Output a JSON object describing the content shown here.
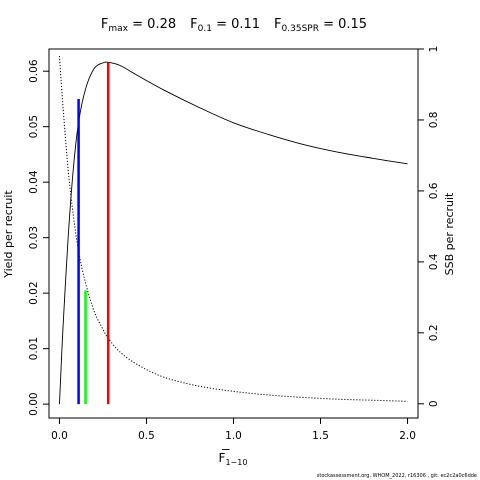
{
  "title": {
    "fmax": {
      "symbol": "F",
      "sub": "max",
      "value": " = 0.28"
    },
    "f01": {
      "symbol": "F",
      "sub": "0.1",
      "value": " = 0.11"
    },
    "fspr": {
      "symbol": "F",
      "sub": "0.35SPR",
      "value": " = 0.15"
    }
  },
  "xlabel": {
    "text": "F",
    "sub": "1−10"
  },
  "footer": "stockassessment.org, WHOM_2022, r16306 , git: ec2c2a0c6dde",
  "chart_data": {
    "type": "line",
    "title": "Fmax = 0.28   F0.1 = 0.11   F0.35SPR = 0.15",
    "xlabel": "F 1-10",
    "ylabel": "Yield per recruit",
    "y2label": "SSB per recruit",
    "xlim": [
      -0.06,
      2.06
    ],
    "ylim": [
      -0.0025,
      0.064
    ],
    "y2lim": [
      -0.04,
      1.0
    ],
    "xticks": [
      0,
      0.5,
      1,
      1.5,
      2
    ],
    "xtick_labels": [
      "0.0",
      "0.5",
      "1.0",
      "1.5",
      "2.0"
    ],
    "yticks": [
      0,
      0.01,
      0.02,
      0.03,
      0.04,
      0.05,
      0.06
    ],
    "ytick_labels": [
      "0.00",
      "0.01",
      "0.02",
      "0.03",
      "0.04",
      "0.05",
      "0.06"
    ],
    "y2ticks": [
      0,
      0.2,
      0.4,
      0.6,
      0.8,
      1.0
    ],
    "y2tick_labels": [
      "0",
      "0.2",
      "0.4",
      "0.6",
      "0.8",
      "1"
    ],
    "grid": false,
    "series": [
      {
        "style": "solid",
        "axis": "left",
        "color": "#000000",
        "x": [
          0,
          0.02,
          0.05,
          0.08,
          0.11,
          0.15,
          0.2,
          0.25,
          0.28,
          0.35,
          0.45,
          0.6,
          0.8,
          1.0,
          1.2,
          1.4,
          1.6,
          1.8,
          2.0
        ],
        "y": [
          0,
          0.0135,
          0.03,
          0.0425,
          0.0508,
          0.0568,
          0.0605,
          0.0615,
          0.0616,
          0.061,
          0.0592,
          0.0566,
          0.0535,
          0.0507,
          0.0486,
          0.0468,
          0.0454,
          0.0443,
          0.0433
        ]
      },
      {
        "style": "dotted",
        "axis": "right",
        "color": "#000000",
        "x": [
          0,
          0.02,
          0.05,
          0.08,
          0.11,
          0.15,
          0.2,
          0.25,
          0.28,
          0.35,
          0.45,
          0.6,
          0.8,
          1.0,
          1.2,
          1.4,
          1.6,
          1.8,
          2.0
        ],
        "y": [
          0.98,
          0.84,
          0.66,
          0.53,
          0.43,
          0.34,
          0.26,
          0.21,
          0.185,
          0.145,
          0.11,
          0.075,
          0.05,
          0.035,
          0.025,
          0.018,
          0.013,
          0.01,
          0.007
        ]
      }
    ],
    "reference_lines": [
      {
        "color": "#0000ff",
        "x": 0.11,
        "y_top": 0.055
      },
      {
        "color": "#00ff00",
        "x": 0.15,
        "y_top": 0.0205
      },
      {
        "color": "#ff0000",
        "x": 0.28,
        "y_top": 0.0616
      }
    ]
  }
}
